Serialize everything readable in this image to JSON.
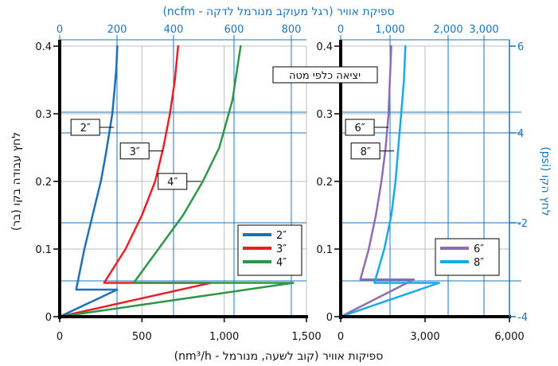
{
  "chart_data": [
    {
      "type": "line",
      "panel": "left",
      "top_axis_label": "ספיקת אוויר (רגל מעוקב מנורמל לדקה - ncfm)",
      "bottom_axis_label": "ספיקות אוויר (קוב לשעה, מנורמל - nm³/h)",
      "ylabel": "לחץ עבודה בקו (בר)",
      "xlim": [
        0,
        1500
      ],
      "ylim": [
        0,
        0.4
      ],
      "x_ticks": [
        0,
        500,
        1000,
        1500
      ],
      "x_tick_labels": [
        "0",
        "500",
        "1,000",
        "1,500"
      ],
      "y_ticks": [
        0,
        0.1,
        0.2,
        0.3,
        0.4
      ],
      "y_tick_labels": [
        "0",
        "0.1",
        "0.2",
        "0.3",
        "0.4"
      ],
      "top_ticks_ncfm": [
        0,
        200,
        400,
        600,
        800
      ],
      "top_tick_labels": [
        "0",
        "200",
        "400",
        "600",
        "800"
      ],
      "legend_position": "right",
      "series": [
        {
          "name": "2″",
          "color": "#1e6fb3",
          "x": [
            0,
            350,
            100,
            150,
            200,
            250,
            280,
            300,
            320,
            335,
            345,
            350
          ],
          "y": [
            0,
            0.04,
            0.04,
            0.1,
            0.15,
            0.2,
            0.24,
            0.27,
            0.3,
            0.34,
            0.37,
            0.4
          ]
        },
        {
          "name": "3″",
          "color": "#e32127",
          "x": [
            0,
            920,
            270,
            400,
            500,
            580,
            630,
            670,
            700,
            720
          ],
          "y": [
            0,
            0.05,
            0.05,
            0.1,
            0.15,
            0.2,
            0.25,
            0.3,
            0.35,
            0.4
          ]
        },
        {
          "name": "4″",
          "color": "#2e9747",
          "x": [
            0,
            1420,
            450,
            600,
            750,
            870,
            970,
            1050,
            1100
          ],
          "y": [
            0,
            0.05,
            0.05,
            0.1,
            0.15,
            0.2,
            0.25,
            0.32,
            0.4
          ]
        }
      ],
      "callouts": [
        {
          "text": "2″",
          "x": 330,
          "y": 0.28
        },
        {
          "text": "3″",
          "x": 630,
          "y": 0.245
        },
        {
          "text": "4″",
          "x": 860,
          "y": 0.2
        }
      ]
    },
    {
      "type": "line",
      "panel": "right",
      "title": "יציאה כלפי מטה",
      "ylabel": "לחץ הקו (psi)",
      "xlim": [
        0,
        6000
      ],
      "ylim": [
        0,
        0.4
      ],
      "x_ticks": [
        0,
        3000,
        6000
      ],
      "x_tick_labels": [
        "0",
        "3,000",
        "6,000"
      ],
      "y_ticks": [
        0,
        0.1,
        0.2,
        0.3,
        0.4
      ],
      "y_tick_labels": [
        "0",
        "0.1",
        "0.2",
        "0.3",
        "0.4"
      ],
      "top_ticks_ncfm": [
        0,
        1000,
        2000,
        3000
      ],
      "top_tick_labels": [
        "0",
        "1,000",
        "2,000",
        "3,000"
      ],
      "psi_tick_labels": [
        "6",
        "4",
        "-2",
        "-4"
      ],
      "legend_position": "right",
      "series": [
        {
          "name": "6″",
          "color": "#8d6fb0",
          "x": [
            0,
            2600,
            700,
            1000,
            1250,
            1450,
            1600,
            1700,
            1750,
            1800
          ],
          "y": [
            0,
            0.055,
            0.055,
            0.1,
            0.15,
            0.2,
            0.25,
            0.3,
            0.35,
            0.4
          ]
        },
        {
          "name": "8″",
          "color": "#1aa9e6",
          "x": [
            0,
            3500,
            1200,
            1550,
            1800,
            1950,
            2050,
            2150,
            2250,
            2300
          ],
          "y": [
            0,
            0.05,
            0.05,
            0.1,
            0.15,
            0.2,
            0.25,
            0.3,
            0.35,
            0.4
          ]
        }
      ],
      "callouts": [
        {
          "text": "6″",
          "x": 1700,
          "y": 0.28
        },
        {
          "text": "8″",
          "x": 1900,
          "y": 0.245
        }
      ]
    }
  ]
}
